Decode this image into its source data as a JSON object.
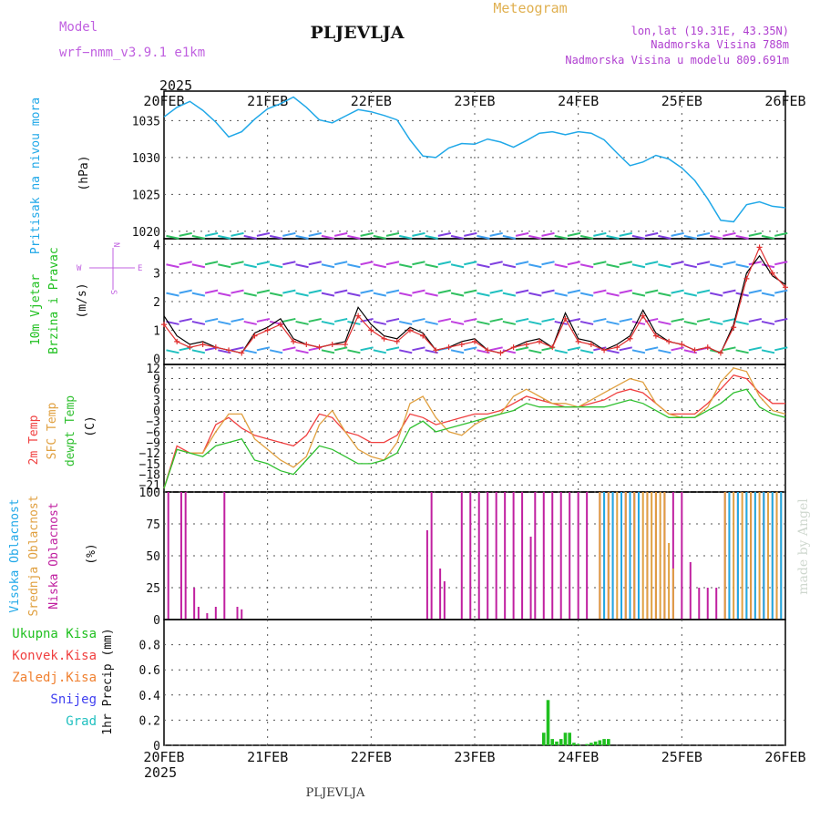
{
  "header": {
    "model_label": "Model",
    "model_name": "wrf−nmm_v3.9.1  e1km",
    "station": "PLJEVLJA",
    "title": "Meteogram",
    "lonlat": "lon,lat (19.31E, 43.35N)",
    "elevation": "Nadmorska Visina 788m",
    "model_elevation": "Nadmorska Visina u modelu 809.691m",
    "footer_station": "PLJEVLJA",
    "watermark": "made by Angel",
    "colors": {
      "model": "#c060e0",
      "title": "#e0b050",
      "info": "#b040d0"
    }
  },
  "time_axis": {
    "year": "2025",
    "labels": [
      "20FEB",
      "21FEB",
      "22FEB",
      "23FEB",
      "24FEB",
      "25FEB",
      "26FEB"
    ],
    "range_hours": [
      0,
      144
    ]
  },
  "chart_data": [
    {
      "type": "line",
      "name": "pressure",
      "ylabel_lines": [
        "Pritisak na nivou mora"
      ],
      "unit": "(hPa)",
      "ylim": [
        1019,
        1039
      ],
      "yticks": [
        "1020",
        "1025",
        "1030",
        "1035"
      ],
      "ytick_values": [
        1020,
        1025,
        1030,
        1035
      ],
      "color": "#20a8e8",
      "series": [
        {
          "x": [
            0,
            3,
            6,
            9,
            12,
            15,
            18,
            21,
            24,
            27,
            30,
            33,
            36,
            39,
            42,
            45,
            48,
            51,
            54,
            57,
            60,
            63,
            66,
            69,
            72,
            75,
            78,
            81,
            84,
            87,
            90,
            93,
            96,
            99,
            102,
            105,
            108,
            111,
            114,
            117,
            120,
            123,
            126,
            129,
            132,
            135,
            138,
            141,
            144
          ],
          "values": [
            1035.5,
            1036.8,
            1037.6,
            1036.4,
            1034.8,
            1032.8,
            1033.5,
            1035.2,
            1036.6,
            1037.3,
            1038.2,
            1036.8,
            1035.1,
            1034.7,
            1035.6,
            1036.5,
            1036.2,
            1035.7,
            1035.1,
            1032.4,
            1030.2,
            1030.0,
            1031.3,
            1031.9,
            1031.8,
            1032.5,
            1032.1,
            1031.4,
            1032.3,
            1033.3,
            1033.5,
            1033.1,
            1033.5,
            1033.3,
            1032.4,
            1030.6,
            1028.9,
            1029.4,
            1030.3,
            1029.8,
            1028.6,
            1026.9,
            1024.4,
            1021.5,
            1021.3,
            1023.6,
            1024.0,
            1023.4,
            1023.2
          ]
        }
      ]
    },
    {
      "type": "line",
      "name": "wind",
      "ylabel_lines": [
        "10m Vjetar",
        "Brzina i Pravac"
      ],
      "unit": "(m/s)",
      "compass": {
        "n": "N",
        "w": "W",
        "e": "E",
        "s": "S"
      },
      "ylim": [
        -0.2,
        4.2
      ],
      "yticks": [
        "0",
        "1",
        "2",
        "3",
        "4"
      ],
      "ytick_values": [
        0,
        1,
        2,
        3,
        4
      ],
      "series": [
        {
          "name": "speed",
          "color": "#000000",
          "x": [
            0,
            3,
            6,
            9,
            12,
            15,
            18,
            21,
            24,
            27,
            30,
            33,
            36,
            39,
            42,
            45,
            48,
            51,
            54,
            57,
            60,
            63,
            66,
            69,
            72,
            75,
            78,
            81,
            84,
            87,
            90,
            93,
            96,
            99,
            102,
            105,
            108,
            111,
            114,
            117,
            120,
            123,
            126,
            129,
            132,
            135,
            138,
            141,
            144
          ],
          "values": [
            1.5,
            0.8,
            0.5,
            0.6,
            0.4,
            0.3,
            0.2,
            0.9,
            1.1,
            1.4,
            0.7,
            0.5,
            0.4,
            0.5,
            0.6,
            1.8,
            1.2,
            0.8,
            0.7,
            1.1,
            0.9,
            0.3,
            0.4,
            0.6,
            0.7,
            0.3,
            0.2,
            0.4,
            0.6,
            0.7,
            0.4,
            1.6,
            0.7,
            0.6,
            0.3,
            0.5,
            0.8,
            1.7,
            0.9,
            0.6,
            0.5,
            0.3,
            0.4,
            0.2,
            1.2,
            3.0,
            3.6,
            2.9,
            2.6
          ]
        },
        {
          "name": "gust",
          "color": "#e03030",
          "x": [
            0,
            3,
            6,
            9,
            12,
            15,
            18,
            21,
            24,
            27,
            30,
            33,
            36,
            39,
            42,
            45,
            48,
            51,
            54,
            57,
            60,
            63,
            66,
            69,
            72,
            75,
            78,
            81,
            84,
            87,
            90,
            93,
            96,
            99,
            102,
            105,
            108,
            111,
            114,
            117,
            120,
            123,
            126,
            129,
            132,
            135,
            138,
            141,
            144
          ],
          "values": [
            1.2,
            0.6,
            0.4,
            0.5,
            0.4,
            0.3,
            0.2,
            0.8,
            1.0,
            1.2,
            0.6,
            0.5,
            0.4,
            0.5,
            0.5,
            1.5,
            1.0,
            0.7,
            0.6,
            1.0,
            0.8,
            0.3,
            0.4,
            0.5,
            0.6,
            0.3,
            0.2,
            0.4,
            0.5,
            0.6,
            0.4,
            1.4,
            0.6,
            0.5,
            0.3,
            0.4,
            0.7,
            1.5,
            0.8,
            0.6,
            0.5,
            0.3,
            0.4,
            0.2,
            1.1,
            2.8,
            3.9,
            3.0,
            2.5
          ]
        }
      ]
    },
    {
      "type": "line",
      "name": "temperature",
      "ylabel_lines": [
        "2m Temp",
        "SFC Temp",
        "dewpt Temp"
      ],
      "unit": "(C)",
      "ylim": [
        -23,
        13
      ],
      "yticks": [
        "12",
        "9",
        "6",
        "3",
        "0",
        "−3",
        "−6",
        "−9",
        "−12",
        "−15",
        "−18",
        "−21"
      ],
      "ytick_values": [
        12,
        9,
        6,
        3,
        0,
        -3,
        -6,
        -9,
        -12,
        -15,
        -18,
        -21
      ],
      "x": [
        0,
        3,
        6,
        9,
        12,
        15,
        18,
        21,
        24,
        27,
        30,
        33,
        36,
        39,
        42,
        45,
        48,
        51,
        54,
        57,
        60,
        63,
        66,
        69,
        72,
        75,
        78,
        81,
        84,
        87,
        90,
        93,
        96,
        99,
        102,
        105,
        108,
        111,
        114,
        117,
        120,
        123,
        126,
        129,
        132,
        135,
        138,
        141,
        144
      ],
      "series": [
        {
          "name": "2m Temp",
          "color": "#f04040",
          "values": [
            -22,
            -10,
            -12,
            -12,
            -4,
            -2,
            -5,
            -7,
            -8,
            -9,
            -10,
            -7,
            -1,
            -2,
            -6,
            -7,
            -9,
            -9,
            -7,
            -1,
            -2,
            -4,
            -3,
            -2,
            -1,
            -1,
            0,
            2,
            4,
            3,
            2,
            1,
            1,
            2,
            3,
            5,
            6,
            5,
            2,
            -1,
            -1,
            -1,
            2,
            6,
            10,
            9,
            5,
            2,
            2
          ]
        },
        {
          "name": "SFC Temp",
          "color": "#e0a040",
          "values": [
            -22,
            -11,
            -12,
            -12,
            -6,
            -1,
            -1,
            -8,
            -11,
            -14,
            -16,
            -13,
            -4,
            0,
            -6,
            -11,
            -13,
            -14,
            -9,
            2,
            4,
            -2,
            -6,
            -7,
            -4,
            -2,
            -1,
            4,
            6,
            4,
            2,
            2,
            1,
            3,
            5,
            7,
            9,
            8,
            2,
            -1,
            -2,
            -2,
            1,
            8,
            12,
            11,
            4,
            0,
            -1
          ]
        },
        {
          "name": "dewpt Temp",
          "color": "#30c030",
          "values": [
            -22,
            -11,
            -12,
            -13,
            -10,
            -9,
            -8,
            -14,
            -15,
            -17,
            -18,
            -14,
            -10,
            -11,
            -13,
            -15,
            -15,
            -14,
            -12,
            -5,
            -3,
            -6,
            -5,
            -4,
            -3,
            -2,
            -1,
            0,
            2,
            1,
            1,
            1,
            1,
            1,
            1,
            2,
            3,
            2,
            0,
            -2,
            -2,
            -2,
            0,
            2,
            5,
            6,
            1,
            -1,
            -2
          ]
        }
      ]
    },
    {
      "type": "bar",
      "name": "clouds",
      "ylabel_lines": [
        "Visoka Oblacnost",
        "Srednja Oblacnost",
        "Niska Oblacnost"
      ],
      "unit": "(%)",
      "ylim": [
        0,
        100
      ],
      "yticks": [
        "0",
        "25",
        "50",
        "75",
        "100"
      ],
      "ytick_values": [
        0,
        25,
        50,
        75,
        100
      ],
      "series": [
        {
          "name": "Niska Oblacnost",
          "color": "#c020a0",
          "x": [
            1,
            4,
            5,
            7,
            8,
            10,
            12,
            14,
            17,
            18,
            61,
            62,
            64,
            65,
            69,
            71,
            73,
            75,
            77,
            79,
            81,
            83,
            85,
            86,
            88,
            90,
            92,
            94,
            96,
            98,
            101,
            103,
            104,
            107,
            109,
            112,
            114,
            116,
            118,
            120,
            122,
            124,
            126,
            128,
            130,
            133,
            136,
            139,
            142
          ],
          "values": [
            100,
            100,
            100,
            25,
            10,
            5,
            10,
            100,
            10,
            8,
            70,
            100,
            40,
            30,
            100,
            100,
            100,
            100,
            100,
            100,
            100,
            100,
            65,
            100,
            100,
            100,
            100,
            100,
            100,
            100,
            100,
            100,
            100,
            100,
            100,
            100,
            100,
            100,
            100,
            100,
            45,
            25,
            25,
            25,
            100,
            100,
            100,
            100,
            100
          ]
        },
        {
          "name": "Srednja Oblacnost",
          "color": "#e0a040",
          "x": [
            101,
            102,
            103,
            104,
            105,
            106,
            107,
            108,
            109,
            110,
            111,
            112,
            113,
            114,
            115,
            116,
            117,
            118,
            130,
            131,
            132,
            133,
            134,
            135,
            136,
            137,
            138,
            139,
            140,
            141,
            142,
            143
          ],
          "values": [
            100,
            100,
            100,
            100,
            100,
            100,
            100,
            100,
            100,
            100,
            100,
            100,
            100,
            100,
            100,
            100,
            60,
            40,
            100,
            100,
            100,
            100,
            100,
            100,
            100,
            100,
            100,
            100,
            100,
            100,
            100,
            100
          ]
        },
        {
          "name": "Visoka Oblacnost",
          "color": "#20a8e8",
          "x": [
            102,
            104,
            106,
            108,
            110,
            131,
            133,
            135,
            137,
            139,
            141,
            143
          ],
          "values": [
            100,
            100,
            100,
            100,
            100,
            100,
            100,
            100,
            100,
            100,
            100,
            100
          ]
        }
      ]
    },
    {
      "type": "bar",
      "name": "precipitation",
      "legend": [
        "Ukupna Kisa",
        "Konvek.Kisa",
        "Zaledj.Kisa",
        "Snijeg",
        "Grad"
      ],
      "legend_colors": [
        "#20c020",
        "#f04040",
        "#f08030",
        "#4040f0",
        "#20c0c0"
      ],
      "ylabel_lines": [
        "1hr Precip (mm)"
      ],
      "ylim": [
        0,
        1
      ],
      "yticks": [
        "0",
        "0.2",
        "0.4",
        "0.6",
        "0.8"
      ],
      "ytick_values": [
        0,
        0.2,
        0.4,
        0.6,
        0.8
      ],
      "series": [
        {
          "name": "Ukupna Kisa",
          "color": "#20c020",
          "x": [
            88,
            89,
            90,
            91,
            92,
            93,
            94,
            95,
            96,
            98,
            99,
            100,
            101,
            102,
            103
          ],
          "values": [
            0.1,
            0.36,
            0.05,
            0.03,
            0.05,
            0.1,
            0.1,
            0.02,
            0.01,
            0.01,
            0.02,
            0.03,
            0.04,
            0.05,
            0.05
          ]
        }
      ]
    }
  ]
}
